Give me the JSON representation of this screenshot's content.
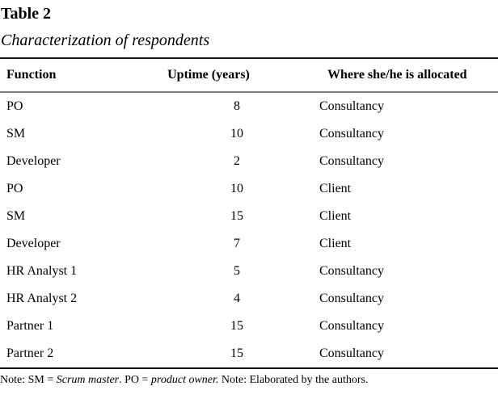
{
  "title": "Table 2",
  "subtitle": "Characterization of respondents",
  "table": {
    "columns": [
      "Function",
      "Uptime (years)",
      "Where she/he is allocated"
    ],
    "rows": [
      {
        "function": "PO",
        "uptime": "8",
        "allocation": "Consultancy"
      },
      {
        "function": "SM",
        "uptime": "10",
        "allocation": "Consultancy"
      },
      {
        "function": "Developer",
        "uptime": "2",
        "allocation": "Consultancy"
      },
      {
        "function": "PO",
        "uptime": "10",
        "allocation": "Client"
      },
      {
        "function": "SM",
        "uptime": "15",
        "allocation": "Client"
      },
      {
        "function": "Developer",
        "uptime": "7",
        "allocation": "Client"
      },
      {
        "function": "HR Analyst 1",
        "uptime": "5",
        "allocation": "Consultancy"
      },
      {
        "function": "HR Analyst 2",
        "uptime": "4",
        "allocation": "Consultancy"
      },
      {
        "function": "Partner 1",
        "uptime": "15",
        "allocation": "Consultancy"
      },
      {
        "function": "Partner 2",
        "uptime": "15",
        "allocation": "Consultancy"
      }
    ]
  },
  "note": {
    "segments": [
      {
        "text": "Note: SM = ",
        "italic": false
      },
      {
        "text": "Scrum master",
        "italic": true
      },
      {
        "text": ". PO = ",
        "italic": false
      },
      {
        "text": "product owner.",
        "italic": true
      },
      {
        "text": " Note: Elaborated by the authors.",
        "italic": false
      }
    ]
  },
  "colors": {
    "background": "#ffffff",
    "text": "#000000",
    "rule_top": "#161616",
    "rule_under_header": "#7d7d7d",
    "rule_bottom": "#000000"
  }
}
